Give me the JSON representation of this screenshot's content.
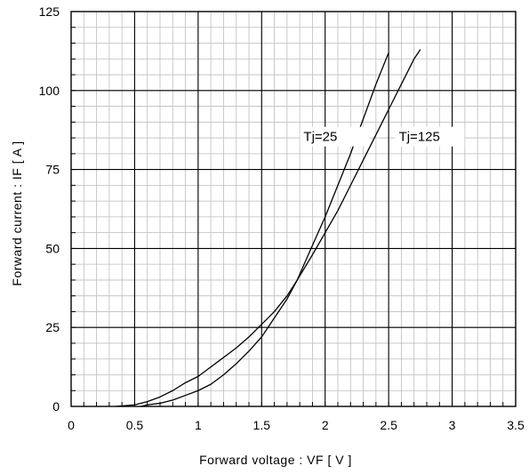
{
  "chart_data": {
    "type": "line",
    "xlabel": "Forward voltage : VF [ V ]",
    "ylabel": "Forward current : IF [ A ]",
    "xlim": [
      0,
      3.5
    ],
    "ylim": [
      0,
      125
    ],
    "x_ticks": [
      0,
      0.5,
      1,
      1.5,
      2,
      2.5,
      3,
      3.5
    ],
    "x_tick_labels": [
      "0",
      "0.5",
      "1",
      "1.5",
      "2",
      "2.5",
      "3",
      "3.5"
    ],
    "y_ticks": [
      0,
      25,
      50,
      75,
      100,
      125
    ],
    "y_tick_labels": [
      "0",
      "25",
      "50",
      "75",
      "100",
      "125"
    ],
    "minor_x_step": 0.1,
    "minor_y_step": 5,
    "grid": true,
    "series": [
      {
        "name": "Tj=25",
        "label_at": [
          1.83,
          84
        ],
        "x": [
          0.35,
          0.5,
          0.6,
          0.7,
          0.8,
          0.9,
          1.0,
          1.1,
          1.2,
          1.3,
          1.4,
          1.5,
          1.6,
          1.7,
          1.78,
          1.9,
          2.0,
          2.1,
          2.2,
          2.3,
          2.4,
          2.5
        ],
        "y": [
          0,
          0.5,
          1.5,
          3,
          5,
          7.5,
          9.5,
          12.5,
          15.5,
          18.5,
          22,
          26,
          30,
          35,
          40,
          51,
          60,
          70,
          80,
          91,
          102,
          112
        ]
      },
      {
        "name": "Tj=125",
        "label_at": [
          2.58,
          84
        ],
        "x": [
          0.55,
          0.6,
          0.7,
          0.8,
          0.9,
          1.0,
          1.1,
          1.2,
          1.3,
          1.4,
          1.5,
          1.6,
          1.7,
          1.78,
          1.9,
          2.0,
          2.1,
          2.2,
          2.3,
          2.4,
          2.5,
          2.6,
          2.7,
          2.75
        ],
        "y": [
          0,
          0.5,
          1,
          2,
          3.5,
          5,
          7,
          10,
          13.5,
          17.5,
          22,
          28,
          34,
          40,
          48,
          55,
          62,
          70,
          78,
          86,
          94,
          102,
          110,
          113
        ]
      }
    ]
  }
}
